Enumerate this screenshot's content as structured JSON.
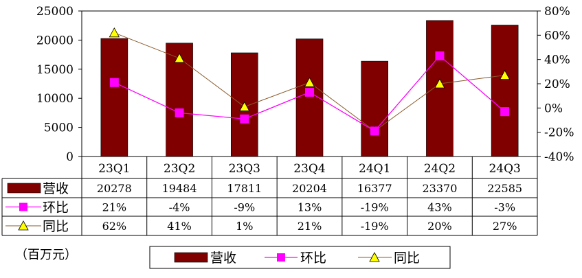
{
  "chart_data": {
    "type": "bar",
    "categories": [
      "23Q1",
      "23Q2",
      "23Q3",
      "23Q4",
      "24Q1",
      "24Q2",
      "24Q3"
    ],
    "series": [
      {
        "name": "营收",
        "kind": "bar",
        "axis": "left",
        "values": [
          20278,
          19484,
          17811,
          20204,
          16377,
          23370,
          22585
        ],
        "labels": [
          "20278",
          "19484",
          "17811",
          "20204",
          "16377",
          "23370",
          "22585"
        ]
      },
      {
        "name": "环比",
        "kind": "line",
        "axis": "right",
        "values": [
          21,
          -4,
          -9,
          13,
          -19,
          43,
          -3
        ],
        "labels": [
          "21%",
          "-4%",
          "-9%",
          "13%",
          "-19%",
          "43%",
          "-3%"
        ]
      },
      {
        "name": "同比",
        "kind": "line",
        "axis": "right",
        "values": [
          62,
          41,
          1,
          21,
          -19,
          20,
          27
        ],
        "labels": [
          "62%",
          "41%",
          "1%",
          "21%",
          "-19%",
          "20%",
          "27%"
        ]
      }
    ],
    "y_left": {
      "min": 0,
      "max": 25000,
      "ticks": [
        "0",
        "5000",
        "10000",
        "15000",
        "20000",
        "25000"
      ]
    },
    "y_right": {
      "min": -40,
      "max": 80,
      "ticks": [
        "-40%",
        "-20%",
        "0%",
        "20%",
        "40%",
        "60%",
        "80%"
      ]
    },
    "unit_note": "（百万元）",
    "legend_position": "bottom",
    "colors": {
      "bar": "#800000",
      "qoq": "#ff00ff",
      "yoy_marker": "#ffff00",
      "yoy_line": "#8b5a2b",
      "grid": "#000000"
    }
  }
}
